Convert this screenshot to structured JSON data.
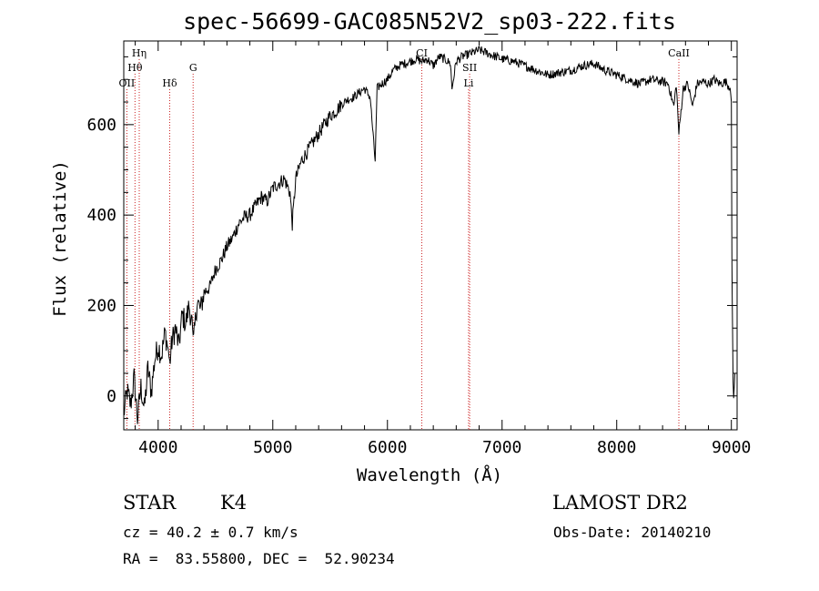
{
  "chart_data": {
    "type": "line",
    "title": "spec-56699-GAC085N52V2_sp03-222.fits",
    "xlabel": "Wavelength (Å)",
    "ylabel": "Flux (relative)",
    "xlim": [
      3700,
      9050
    ],
    "ylim": [
      -75,
      785
    ],
    "x_ticks": [
      4000,
      5000,
      6000,
      7000,
      8000,
      9000
    ],
    "y_ticks": [
      0,
      200,
      400,
      600
    ],
    "grid": false,
    "series": [
      {
        "color": "#000000",
        "x": [
          3700,
          3730,
          3760,
          3790,
          3820,
          3850,
          3880,
          3910,
          3940,
          3970,
          4000,
          4030,
          4060,
          4090,
          4101,
          4120,
          4150,
          4180,
          4210,
          4240,
          4270,
          4300,
          4310,
          4340,
          4370,
          4400,
          4450,
          4500,
          4550,
          4600,
          4650,
          4700,
          4750,
          4800,
          4850,
          4900,
          4950,
          5000,
          5050,
          5100,
          5150,
          5170,
          5200,
          5250,
          5300,
          5350,
          5400,
          5450,
          5500,
          5550,
          5600,
          5650,
          5700,
          5750,
          5800,
          5850,
          5880,
          5893,
          5910,
          5950,
          6000,
          6050,
          6100,
          6150,
          6200,
          6250,
          6300,
          6350,
          6400,
          6450,
          6500,
          6550,
          6563,
          6600,
          6650,
          6700,
          6750,
          6800,
          6850,
          6900,
          6950,
          7000,
          7100,
          7200,
          7300,
          7400,
          7500,
          7600,
          7700,
          7800,
          7900,
          8000,
          8100,
          8200,
          8300,
          8400,
          8450,
          8498,
          8520,
          8542,
          8580,
          8620,
          8662,
          8700,
          8750,
          8800,
          8850,
          8900,
          8950,
          8990,
          9000,
          9005,
          9010,
          9015,
          9020,
          9030
        ],
        "y": [
          -40,
          10,
          -20,
          40,
          -50,
          20,
          -30,
          60,
          10,
          80,
          110,
          90,
          140,
          100,
          70,
          120,
          150,
          110,
          180,
          160,
          200,
          150,
          120,
          210,
          190,
          230,
          240,
          280,
          300,
          330,
          350,
          380,
          395,
          400,
          420,
          440,
          430,
          460,
          470,
          480,
          450,
          380,
          480,
          520,
          540,
          560,
          580,
          600,
          620,
          630,
          645,
          655,
          660,
          670,
          680,
          660,
          560,
          520,
          680,
          690,
          700,
          720,
          730,
          735,
          740,
          745,
          740,
          745,
          730,
          750,
          745,
          735,
          680,
          740,
          750,
          755,
          760,
          765,
          760,
          755,
          750,
          745,
          740,
          730,
          720,
          710,
          715,
          720,
          730,
          735,
          720,
          710,
          700,
          690,
          700,
          695,
          690,
          640,
          690,
          580,
          680,
          690,
          640,
          690,
          695,
          690,
          700,
          690,
          695,
          680,
          650,
          300,
          150,
          30,
          -5,
          50
        ]
      }
    ],
    "line_markers": [
      {
        "label": "OII",
        "wavelength": 3727,
        "row": 3
      },
      {
        "label": "Hθ",
        "wavelength": 3798,
        "row": 2
      },
      {
        "label": "Hη",
        "wavelength": 3835,
        "row": 1
      },
      {
        "label": "Hδ",
        "wavelength": 4101,
        "row": 3
      },
      {
        "label": "G",
        "wavelength": 4305,
        "row": 2
      },
      {
        "label": "CI",
        "wavelength": 6300,
        "row": 1
      },
      {
        "label": "SII",
        "wavelength": 6717,
        "row": 2
      },
      {
        "label": "Li",
        "wavelength": 6708,
        "row": 3
      },
      {
        "label": "CaII",
        "wavelength": 8542,
        "row": 1
      }
    ],
    "marker_color": "#cc2222"
  },
  "info": {
    "object_class": "STAR",
    "subclass": "K4",
    "redshift": "cz = 40.2 ± 0.7 km/s",
    "coords": "RA =  83.55800, DEC =  52.90234",
    "survey": "LAMOST DR2",
    "obs_date": "Obs-Date: 20140210"
  }
}
